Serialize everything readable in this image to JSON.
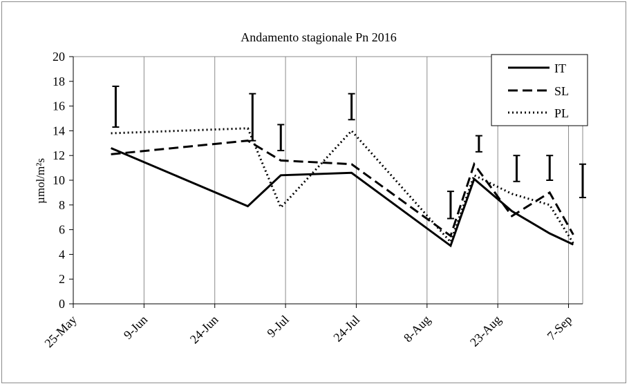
{
  "chart_data": {
    "type": "line",
    "title": "Andamento stagionale Pn 2016",
    "ylabel": "µmol/m²s",
    "xlabel": "",
    "ylim": [
      0,
      20
    ],
    "yticks": [
      0,
      2,
      4,
      6,
      8,
      10,
      12,
      14,
      16,
      18,
      20
    ],
    "xlim": [
      "2016-05-25",
      "2016-09-10"
    ],
    "xticks": [
      {
        "date": "2016-05-25",
        "label": "25-May"
      },
      {
        "date": "2016-06-09",
        "label": "9-Jun"
      },
      {
        "date": "2016-06-24",
        "label": "24-Jun"
      },
      {
        "date": "2016-07-09",
        "label": "9-Jul"
      },
      {
        "date": "2016-07-24",
        "label": "24-Jul"
      },
      {
        "date": "2016-08-08",
        "label": "8-Aug"
      },
      {
        "date": "2016-08-23",
        "label": "23-Aug"
      },
      {
        "date": "2016-09-07",
        "label": "7-Sep"
      }
    ],
    "grid": "vertical",
    "legend_position": "top-right",
    "series": [
      {
        "name": "IT",
        "style": "solid",
        "x": [
          "2016-06-02",
          "2016-07-01",
          "2016-07-08",
          "2016-07-23",
          "2016-08-13",
          "2016-08-18",
          "2016-08-26",
          "2016-09-03",
          "2016-09-08"
        ],
        "values": [
          12.6,
          7.9,
          10.4,
          10.6,
          4.7,
          10.1,
          7.5,
          5.7,
          4.8
        ]
      },
      {
        "name": "SL",
        "style": "dashed",
        "x": [
          "2016-06-02",
          "2016-07-01",
          "2016-07-08",
          "2016-07-23",
          "2016-08-13",
          "2016-08-18",
          "2016-08-26",
          "2016-09-03",
          "2016-09-08"
        ],
        "values": [
          12.1,
          13.2,
          11.6,
          11.3,
          5.5,
          11.3,
          7.1,
          9.0,
          5.6
        ]
      },
      {
        "name": "PL",
        "style": "dotted",
        "x": [
          "2016-06-02",
          "2016-07-01",
          "2016-07-08",
          "2016-07-23",
          "2016-08-13",
          "2016-08-18",
          "2016-08-26",
          "2016-09-03",
          "2016-09-08"
        ],
        "values": [
          13.8,
          14.2,
          7.8,
          14.0,
          5.0,
          10.4,
          8.9,
          8.0,
          4.9
        ]
      }
    ],
    "error_bars": [
      {
        "x": "2016-06-03",
        "low": 14.3,
        "high": 17.6
      },
      {
        "x": "2016-07-02",
        "low": 13.2,
        "high": 17.0
      },
      {
        "x": "2016-07-08",
        "low": 12.4,
        "high": 14.5
      },
      {
        "x": "2016-07-23",
        "low": 14.9,
        "high": 17.0
      },
      {
        "x": "2016-08-13",
        "low": 6.9,
        "high": 9.1
      },
      {
        "x": "2016-08-19",
        "low": 12.3,
        "high": 13.6
      },
      {
        "x": "2016-08-27",
        "low": 9.9,
        "high": 12.0
      },
      {
        "x": "2016-09-03",
        "low": 10.0,
        "high": 12.0
      },
      {
        "x": "2016-09-10",
        "low": 8.6,
        "high": 11.3
      }
    ]
  }
}
